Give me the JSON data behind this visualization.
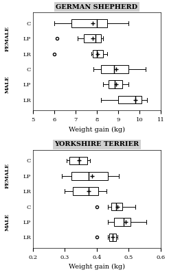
{
  "gs_title": "GERMAN SHEPHERD",
  "gs_xlabel": "Weight gain (kg)",
  "gs_xlim": [
    5,
    11
  ],
  "gs_xticks": [
    5,
    6,
    7,
    8,
    9,
    10,
    11
  ],
  "gs_ytick_labels": [
    "C",
    "LP",
    "LR",
    "C",
    "LP",
    "LR"
  ],
  "gs_boxes": [
    {
      "label": "Female C",
      "whislo": 6.0,
      "q1": 6.8,
      "med": 8.0,
      "q3": 8.5,
      "whishi": 9.5,
      "fliers": [],
      "mean": 7.8
    },
    {
      "label": "Female LP",
      "whislo": 7.1,
      "q1": 7.4,
      "med": 7.95,
      "q3": 8.2,
      "whishi": 8.3,
      "fliers": [
        6.15
      ],
      "mean": 7.8
    },
    {
      "label": "Female LR",
      "whislo": 7.75,
      "q1": 7.8,
      "med": 8.0,
      "q3": 8.3,
      "whishi": 8.5,
      "fliers": [
        6.0
      ],
      "mean": 8.05
    },
    {
      "label": "Male C",
      "whislo": 7.85,
      "q1": 8.2,
      "med": 8.8,
      "q3": 9.5,
      "whishi": 10.3,
      "fliers": [],
      "mean": 8.9
    },
    {
      "label": "Male LP",
      "whislo": 8.3,
      "q1": 8.55,
      "med": 8.85,
      "q3": 9.2,
      "whishi": 9.5,
      "fliers": [],
      "mean": 8.9
    },
    {
      "label": "Male LR",
      "whislo": 8.2,
      "q1": 9.0,
      "med": 9.8,
      "q3": 10.1,
      "whishi": 10.35,
      "fliers": [],
      "mean": 9.8
    }
  ],
  "yt_title": "YORKSHIRE TERRIER",
  "yt_xlabel": "Weight gain (kg)",
  "yt_xlim": [
    0.2,
    0.6
  ],
  "yt_xticks": [
    0.2,
    0.3,
    0.4,
    0.5,
    0.6
  ],
  "yt_ytick_labels": [
    "C",
    "LP",
    "LR",
    "C",
    "LP",
    "LR"
  ],
  "yt_boxes": [
    {
      "label": "Female C",
      "whislo": 0.305,
      "q1": 0.315,
      "med": 0.345,
      "q3": 0.37,
      "whishi": 0.38,
      "fliers": [],
      "mean": 0.345
    },
    {
      "label": "Female LP",
      "whislo": 0.29,
      "q1": 0.32,
      "med": 0.375,
      "q3": 0.435,
      "whishi": 0.47,
      "fliers": [],
      "mean": 0.385
    },
    {
      "label": "Female LR",
      "whislo": 0.3,
      "q1": 0.325,
      "med": 0.375,
      "q3": 0.405,
      "whishi": 0.43,
      "fliers": [],
      "mean": 0.375
    },
    {
      "label": "Male C",
      "whislo": 0.435,
      "q1": 0.445,
      "med": 0.46,
      "q3": 0.48,
      "whishi": 0.52,
      "fliers": [
        0.4
      ],
      "mean": 0.465
    },
    {
      "label": "Male LP",
      "whislo": 0.435,
      "q1": 0.455,
      "med": 0.485,
      "q3": 0.505,
      "whishi": 0.555,
      "fliers": [],
      "mean": 0.49
    },
    {
      "label": "Male LR",
      "whislo": 0.435,
      "q1": 0.44,
      "med": 0.45,
      "q3": 0.46,
      "whishi": 0.465,
      "fliers": [
        0.4
      ],
      "mean": 0.45
    }
  ],
  "box_facecolor": "white",
  "box_edgecolor": "black",
  "median_color": "black",
  "mean_marker": "+",
  "mean_color": "black",
  "flier_marker": "o",
  "flier_size": 3,
  "title_bg": "#d0d0d0",
  "title_fontsize": 7,
  "tick_fontsize": 6,
  "label_fontsize": 7,
  "group_label_fontsize": 5.5
}
